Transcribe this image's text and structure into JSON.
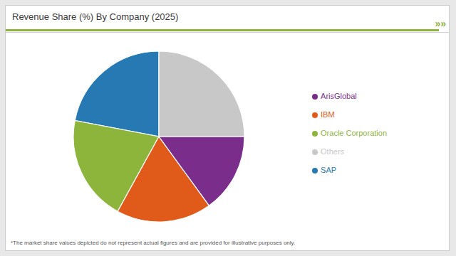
{
  "chart_data": {
    "type": "pie",
    "title": "Revenue Share (%) By Company (2025)",
    "footnote": "*The market share values depicted do not represent actual figures and are provided for illustrative purposes only.",
    "annotations": [
      "»»"
    ],
    "categories": [
      "SAP",
      "Oracle Corporation",
      "IBM",
      "ArisGlobal",
      "Others"
    ],
    "values": [
      22,
      20,
      18,
      15,
      25
    ],
    "colors": [
      "#2679b2",
      "#8db53b",
      "#e05a1a",
      "#7b2d8b",
      "#c8c8c8"
    ],
    "legend": "right"
  }
}
